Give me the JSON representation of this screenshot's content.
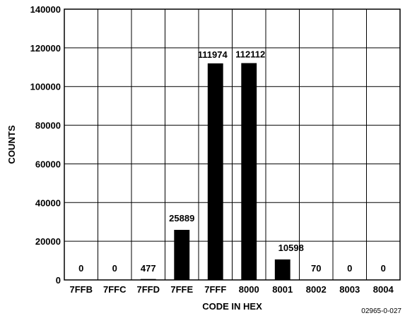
{
  "chart_data": {
    "type": "bar",
    "categories": [
      "7FFB",
      "7FFC",
      "7FFD",
      "7FFE",
      "7FFF",
      "8000",
      "8001",
      "8002",
      "8003",
      "8004"
    ],
    "values": [
      0,
      0,
      477,
      25889,
      111974,
      112112,
      10598,
      70,
      0,
      0
    ],
    "data_labels": [
      "0",
      "0",
      "477",
      "25889",
      "111974",
      "112112",
      "10598",
      "70",
      "0",
      "0"
    ],
    "xlabel": "CODE IN HEX",
    "ylabel": "COUNTS",
    "ylim": [
      0,
      140000
    ],
    "yticks": [
      0,
      20000,
      40000,
      60000,
      80000,
      100000,
      120000,
      140000
    ],
    "grid": true,
    "bar_color": "#000000",
    "grid_color": "#000000"
  },
  "figure_code": "02965-0-027"
}
